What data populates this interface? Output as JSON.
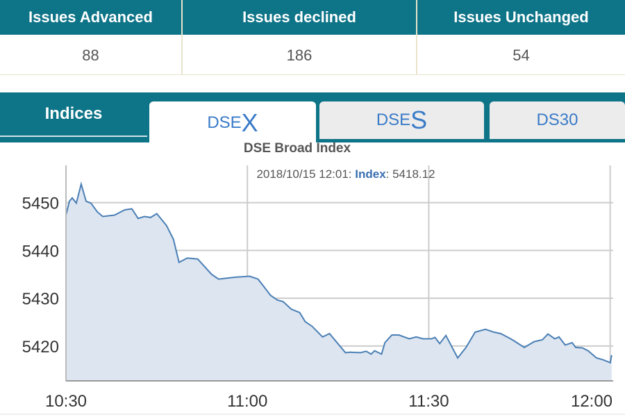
{
  "stats": {
    "headers": [
      "Issues Advanced",
      "Issues declined",
      "Issues Unchanged"
    ],
    "values": [
      "88",
      "186",
      "54"
    ]
  },
  "tabs": {
    "indices_label": "Indices",
    "items": [
      {
        "prefix": "DSE",
        "suffix": "X",
        "active": true
      },
      {
        "prefix": "DSE",
        "suffix": "S",
        "active": false
      },
      {
        "prefix": "DS30",
        "suffix": "",
        "active": false
      }
    ]
  },
  "colors": {
    "header": "#0e7488",
    "line": "#4a7fb5",
    "fill": "#dde5f0",
    "tab_text": "#3a7bc8"
  },
  "chart_data": {
    "type": "area",
    "title": "DSE Broad Index",
    "tooltip": {
      "date": "2018/10/15 12:01:",
      "label": "Index",
      "value": ": 5418.12"
    },
    "xlabel": "",
    "ylabel": "",
    "xlim": [
      "10:30:00",
      "12:00:30"
    ],
    "ylim": [
      5412.7,
      5457.8
    ],
    "xticks": [
      "10:30",
      "11:00",
      "11:30",
      "12:00"
    ],
    "yticks": [
      5420,
      5430,
      5440,
      5450
    ],
    "grid": true,
    "x": [
      "10:30:00",
      "10:30:34",
      "10:31:02",
      "10:31:43",
      "10:32:31",
      "10:33:20",
      "10:34:08",
      "10:35:10",
      "10:36:05",
      "10:38:02",
      "10:39:45",
      "10:40:54",
      "10:41:56",
      "10:42:58",
      "10:44:00",
      "10:45:01",
      "10:46:38",
      "10:47:47",
      "10:48:42",
      "10:50:04",
      "10:51:47",
      "10:54:05",
      "10:55:14",
      "10:58:06",
      "11:00:23",
      "11:01:46",
      "11:02:41",
      "11:03:50",
      "11:04:59",
      "11:05:54",
      "11:07:16",
      "11:08:39",
      "11:09:34",
      "11:10:43",
      "11:12:26",
      "11:13:35",
      "11:16:13",
      "11:17:01",
      "11:18:44",
      "11:19:39",
      "11:20:28",
      "11:21:02",
      "11:22:11",
      "11:22:45",
      "11:23:54",
      "11:25:03",
      "11:26:46",
      "11:27:55",
      "11:29:04",
      "11:30:26",
      "11:31:01",
      "11:31:49",
      "11:32:50",
      "11:34:47",
      "11:36:10",
      "11:37:40",
      "11:39:23",
      "11:40:46",
      "11:41:54",
      "11:43:23",
      "11:43:58",
      "11:45:48",
      "11:47:25",
      "11:48:47",
      "11:49:42",
      "11:50:51",
      "11:51:32",
      "11:52:34",
      "11:53:43",
      "11:54:17",
      "11:55:26",
      "11:56:21",
      "11:57:44",
      "11:58:53",
      "12:00:01",
      "12:00:15"
    ],
    "values": [
      5447.4,
      5450.3,
      5451.0,
      5449.9,
      5453.9,
      5450.3,
      5449.9,
      5448.1,
      5447.1,
      5447.4,
      5448.5,
      5448.7,
      5446.7,
      5447.1,
      5446.9,
      5447.7,
      5445.2,
      5442.3,
      5437.5,
      5438.4,
      5438.2,
      5435.0,
      5434.0,
      5434.4,
      5434.6,
      5434.0,
      5432.5,
      5430.6,
      5429.6,
      5429.3,
      5427.7,
      5427.0,
      5425.1,
      5424.1,
      5421.9,
      5422.6,
      5418.6,
      5418.7,
      5418.6,
      5418.9,
      5418.3,
      5419.0,
      5418.3,
      5420.7,
      5422.3,
      5422.3,
      5421.5,
      5421.9,
      5421.5,
      5421.5,
      5421.8,
      5420.5,
      5422.2,
      5417.5,
      5419.7,
      5422.9,
      5423.5,
      5422.9,
      5422.6,
      5421.6,
      5421.2,
      5419.7,
      5420.9,
      5421.3,
      5422.5,
      5421.5,
      5421.9,
      5420.2,
      5420.7,
      5419.7,
      5419.6,
      5419.0,
      5417.5,
      5417.1,
      5416.5,
      5418.1
    ]
  }
}
